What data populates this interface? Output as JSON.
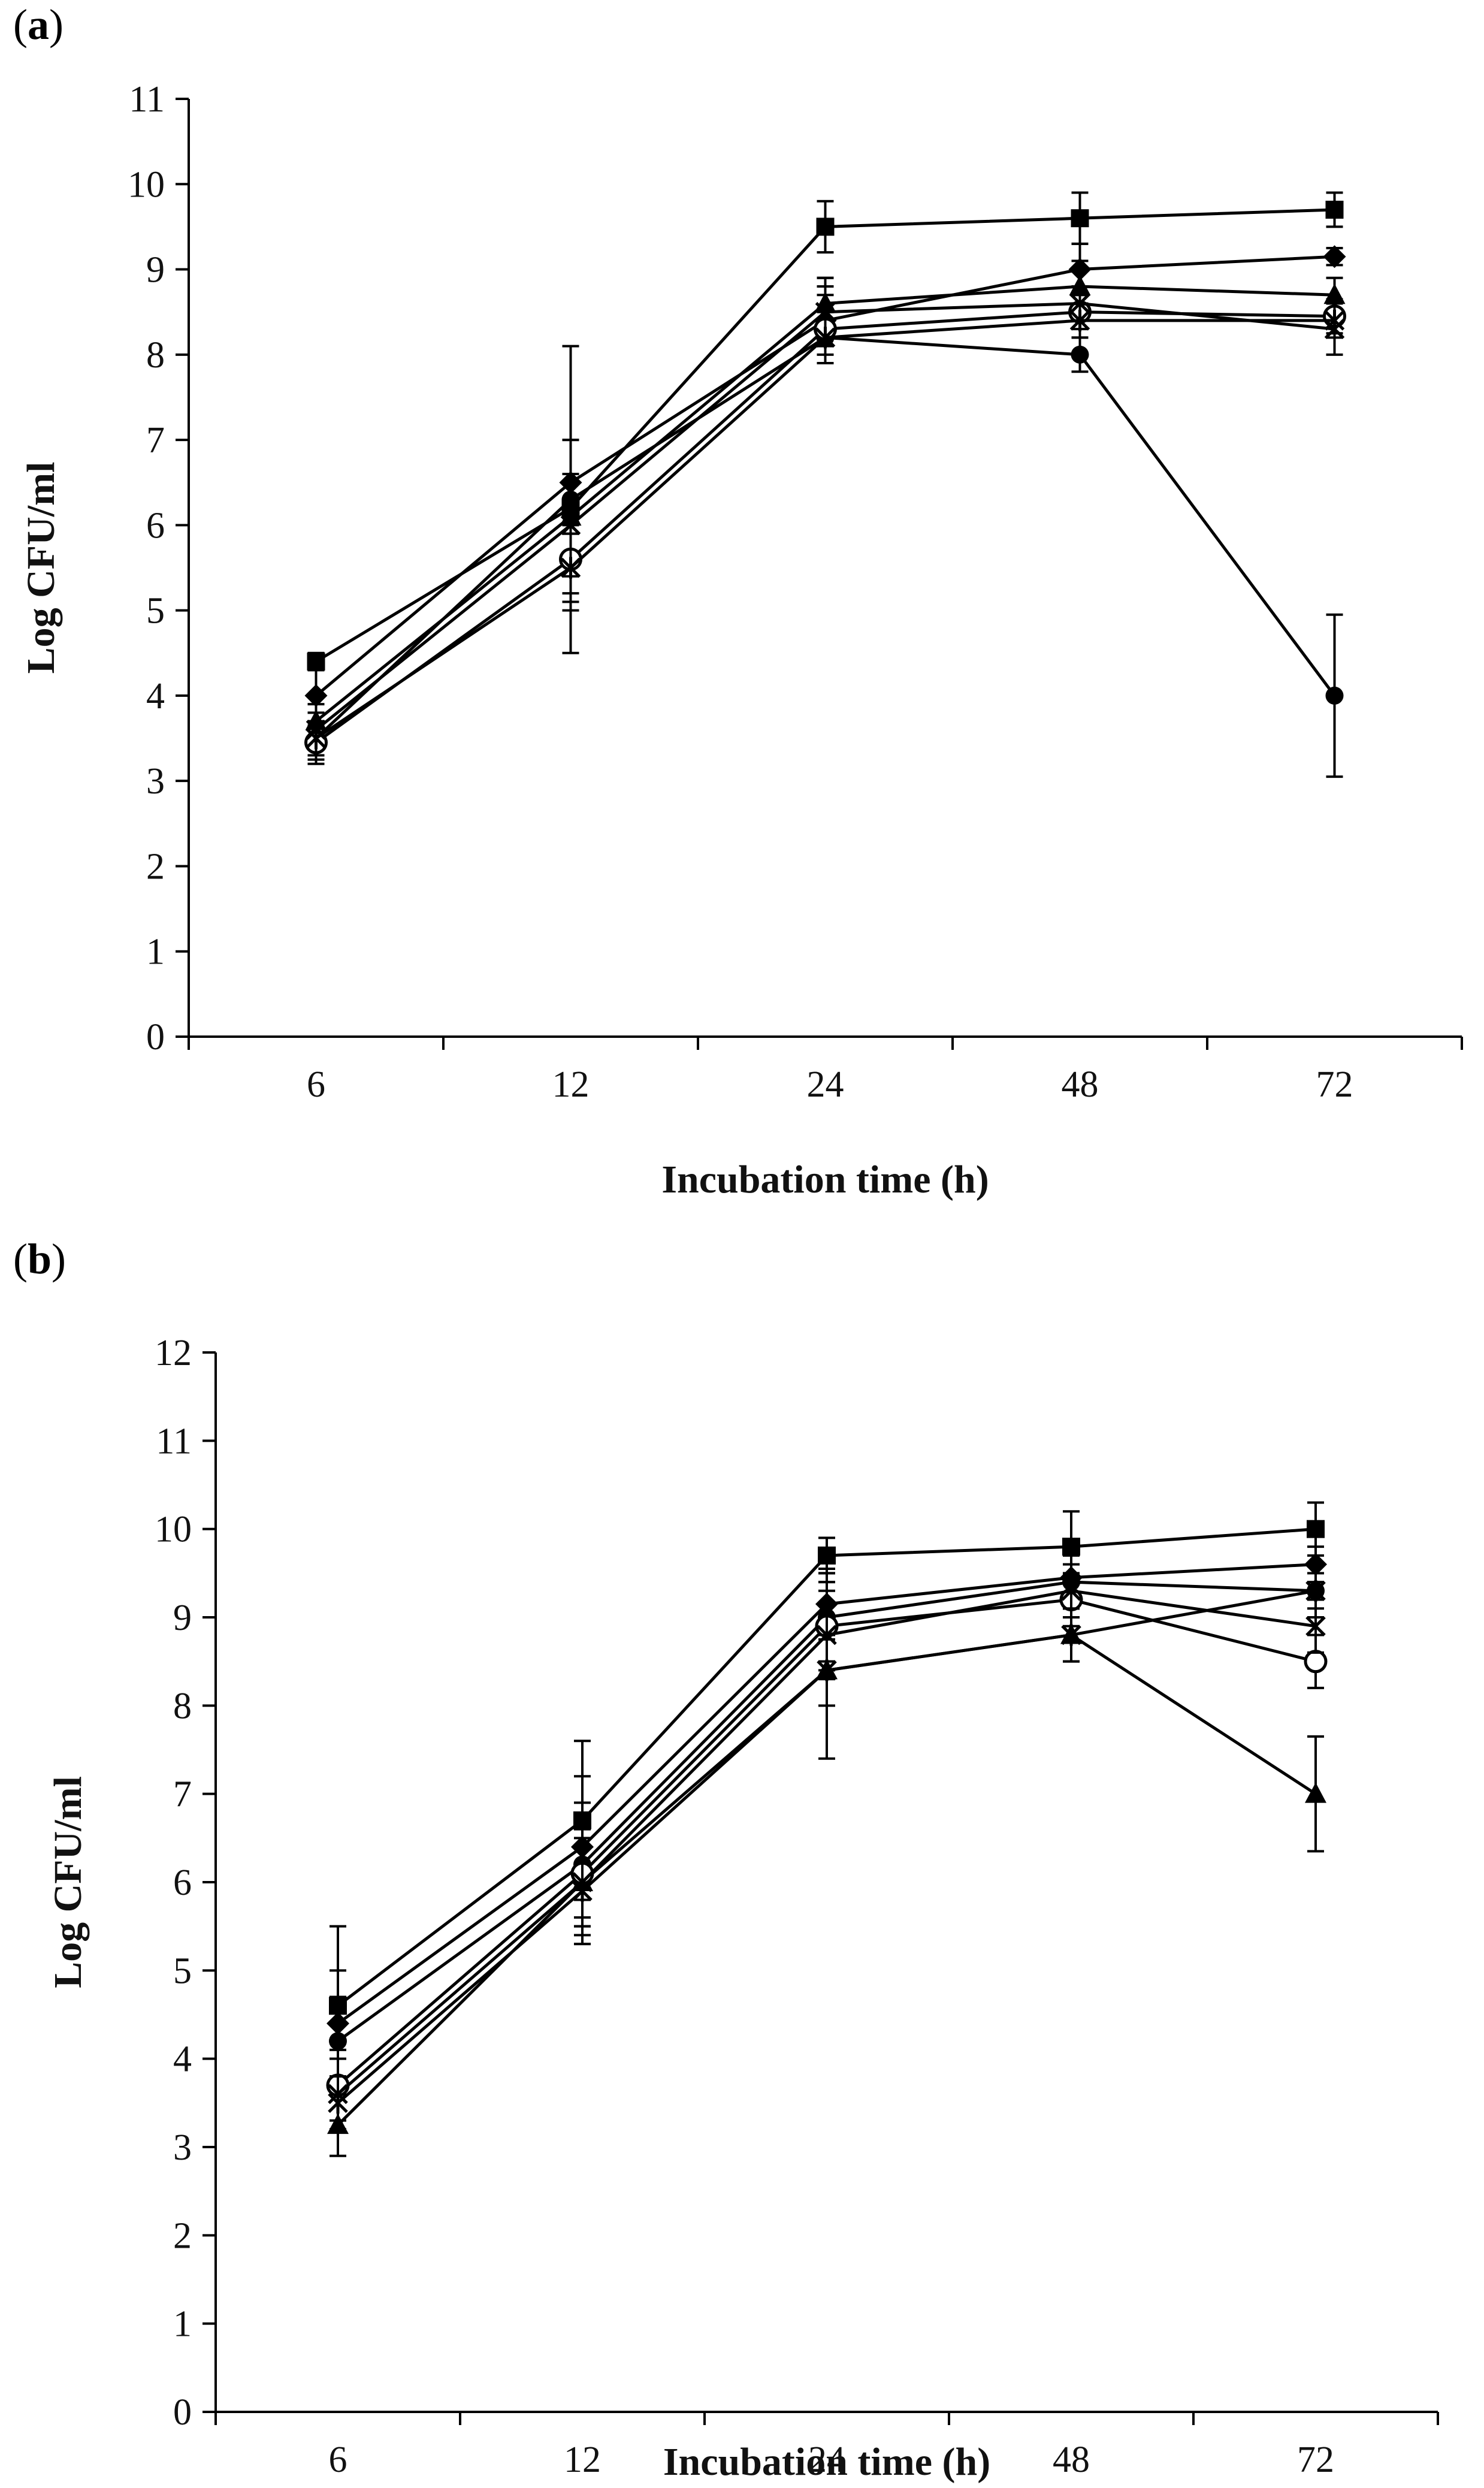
{
  "chart_data": [
    {
      "panel": "a",
      "type": "line",
      "xlabel": "Incubation time (h)",
      "ylabel": "Log CFU/ml",
      "categories": [
        "6",
        "12",
        "24",
        "48",
        "72"
      ],
      "yticks": [
        0,
        1,
        2,
        3,
        4,
        5,
        6,
        7,
        8,
        9,
        10,
        11
      ],
      "ylim": [
        0,
        11
      ],
      "series": [
        {
          "name": "square",
          "marker": "square",
          "values": [
            4.4,
            6.2,
            9.5,
            9.6,
            9.7
          ],
          "err": [
            0.1,
            0.3,
            0.3,
            0.3,
            0.2
          ]
        },
        {
          "name": "diamond",
          "marker": "diamond",
          "values": [
            4.0,
            6.5,
            8.4,
            9.0,
            9.15
          ],
          "err": [
            0.3,
            0.5,
            0.4,
            0.3,
            0.1
          ]
        },
        {
          "name": "filled-circle",
          "marker": "circle",
          "values": [
            3.5,
            6.3,
            8.2,
            8.0,
            4.0
          ],
          "err": [
            0.3,
            1.8,
            0.3,
            0.2,
            0.95
          ]
        },
        {
          "name": "triangle",
          "marker": "triangle",
          "values": [
            3.7,
            6.1,
            8.6,
            8.8,
            8.7
          ],
          "err": [
            0.3,
            0.9,
            0.3,
            0.3,
            0.2
          ]
        },
        {
          "name": "open-circle",
          "marker": "open-circle",
          "values": [
            3.45,
            5.6,
            8.3,
            8.5,
            8.45
          ],
          "err": [
            0.2,
            0.6,
            0.4,
            0.2,
            0.2
          ]
        },
        {
          "name": "cross",
          "marker": "x",
          "values": [
            3.6,
            6.0,
            8.5,
            8.6,
            8.3
          ],
          "err": [
            0.3,
            0.6,
            0.4,
            0.2,
            0.3
          ]
        },
        {
          "name": "star",
          "marker": "star",
          "values": [
            3.5,
            5.5,
            8.2,
            8.4,
            8.4
          ],
          "err": [
            0.2,
            0.4,
            0.3,
            0.2,
            0.2
          ]
        }
      ]
    },
    {
      "panel": "b",
      "type": "line",
      "xlabel": "Incubation time (h)",
      "ylabel": "Log CFU/ml",
      "categories": [
        "6",
        "12",
        "24",
        "48",
        "72"
      ],
      "yticks": [
        0,
        1,
        2,
        3,
        4,
        5,
        6,
        7,
        8,
        9,
        10,
        11,
        12
      ],
      "ylim": [
        0,
        12
      ],
      "series": [
        {
          "name": "square",
          "marker": "square",
          "values": [
            4.6,
            6.7,
            9.7,
            9.8,
            10.0
          ],
          "err": [
            0.9,
            0.9,
            0.2,
            0.4,
            0.3
          ]
        },
        {
          "name": "diamond",
          "marker": "diamond",
          "values": [
            4.4,
            6.4,
            9.15,
            9.45,
            9.6
          ],
          "err": [
            0.6,
            0.8,
            0.4,
            0.3,
            0.2
          ]
        },
        {
          "name": "filled-circle",
          "marker": "circle",
          "values": [
            4.2,
            6.2,
            9.0,
            9.4,
            9.3
          ],
          "err": [
            0.5,
            0.7,
            0.5,
            0.3,
            0.2
          ]
        },
        {
          "name": "triangle",
          "marker": "triangle",
          "values": [
            3.25,
            6.0,
            8.4,
            8.8,
            7.0
          ],
          "err": [
            0.35,
            0.7,
            1.0,
            0.3,
            0.65
          ]
        },
        {
          "name": "open-circle",
          "marker": "open-circle",
          "values": [
            3.7,
            6.1,
            8.9,
            9.2,
            8.5
          ],
          "err": [
            0.4,
            0.6,
            0.5,
            0.3,
            0.3
          ]
        },
        {
          "name": "cross",
          "marker": "x",
          "values": [
            3.6,
            6.0,
            8.8,
            9.3,
            8.9
          ],
          "err": [
            0.4,
            0.6,
            0.5,
            0.3,
            0.3
          ]
        },
        {
          "name": "star",
          "marker": "star",
          "values": [
            3.5,
            5.9,
            8.4,
            8.8,
            9.3
          ],
          "err": [
            0.3,
            0.6,
            0.4,
            0.3,
            0.3
          ]
        }
      ]
    }
  ],
  "panels": {
    "a": {
      "open": "(",
      "letter": "a",
      "close": ")"
    },
    "b": {
      "open": "(",
      "letter": "b",
      "close": ")"
    }
  }
}
